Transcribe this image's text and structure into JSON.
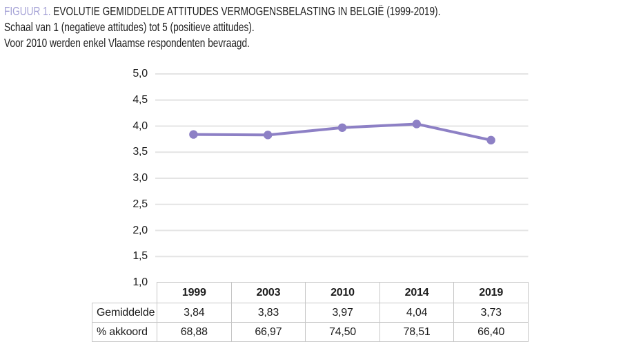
{
  "header": {
    "figure_label": "FIGUUR 1.",
    "title": "EVOLUTIE GEMIDDELDE ATTITUDES VERMOGENSBELASTING IN BELGIË (1999-2019).",
    "subtitle_scale": "Schaal van 1 (negatieve attitudes) tot 5 (positieve attitudes).",
    "subtitle_note": "Voor 2010 werden enkel Vlaamse respondenten bevraagd."
  },
  "theme": {
    "line_color": "#8d80c5",
    "marker_color": "#8d80c5",
    "figure_label_color": "#a3a0d5",
    "grid_color": "#e4e4e4",
    "table_border_color": "#c6c6c6",
    "text_color": "#1b1b1b"
  },
  "chart_data": {
    "type": "line",
    "title": "Evolutie gemiddelde attitudes vermogensbelasting in België (1999-2019)",
    "xlabel": "",
    "ylabel": "",
    "categories": [
      "1999",
      "2003",
      "2010",
      "2014",
      "2019"
    ],
    "series": [
      {
        "name": "Gemiddelde",
        "values": [
          3.84,
          3.83,
          3.97,
          4.04,
          3.73
        ]
      }
    ],
    "ylim": [
      1.0,
      5.0
    ],
    "ytick_step": 0.5,
    "ytick_labels": [
      "5,0",
      "4,5",
      "4,0",
      "3,5",
      "3,0",
      "2,5",
      "2,0",
      "1,5",
      "1,0"
    ],
    "grid": true,
    "legend_position": "none",
    "table": {
      "row_labels": [
        "Gemiddelde",
        "% akkoord"
      ],
      "rows": [
        [
          "3,84",
          "3,83",
          "3,97",
          "4,04",
          "3,73"
        ],
        [
          "68,88",
          "66,97",
          "74,50",
          "78,51",
          "66,40"
        ]
      ]
    }
  }
}
